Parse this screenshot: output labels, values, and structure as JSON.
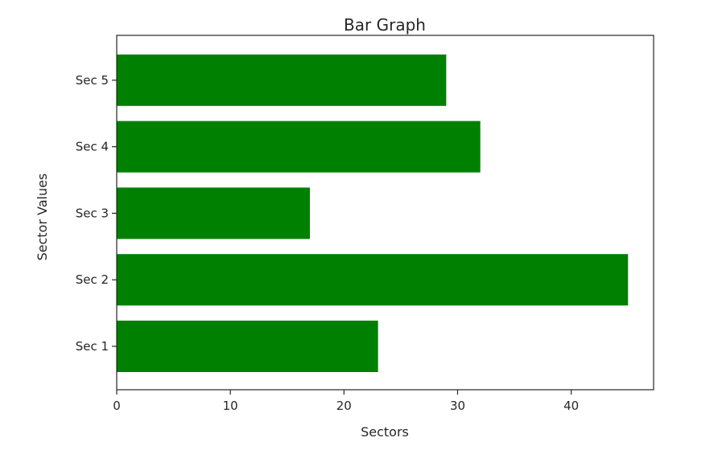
{
  "chart_data": {
    "type": "bar",
    "orientation": "horizontal",
    "title": "Bar Graph",
    "xlabel": "Sectors",
    "ylabel": "Sector Values",
    "categories": [
      "Sec 1",
      "Sec 2",
      "Sec 3",
      "Sec 4",
      "Sec 5"
    ],
    "values": [
      23,
      45,
      17,
      32,
      29
    ],
    "xlim": [
      0,
      47.25
    ],
    "xticks": [
      0,
      10,
      20,
      30,
      40
    ],
    "bar_color": "#008000",
    "grid": false,
    "legend": "none"
  }
}
